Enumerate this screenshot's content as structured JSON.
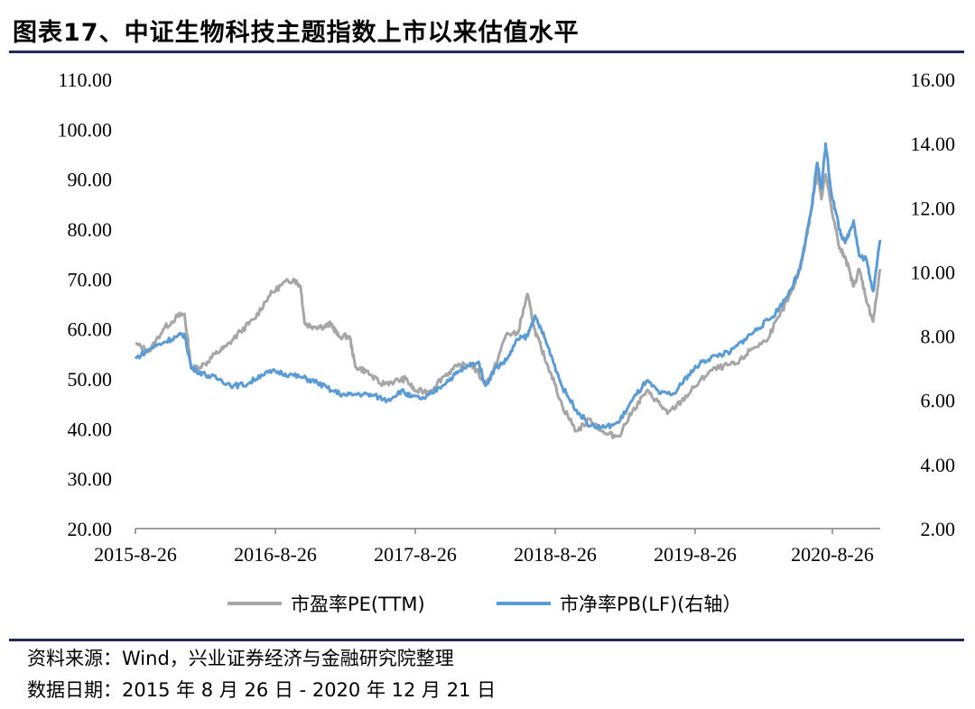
{
  "header": {
    "title": "图表17、中证生物科技主题指数上市以来估值水平"
  },
  "footer": {
    "source": "资料来源：Wind，兴业证券经济与金融研究院整理",
    "date_range": "数据日期：2015 年 8 月 26 日 - 2020 年 12 月 21 日"
  },
  "colors": {
    "pe": "#a6a6a6",
    "pb": "#5b9bd5",
    "rule": "#1f2a5a"
  },
  "chart_data": {
    "type": "line",
    "title": "图表17、中证生物科技主题指数上市以来估值水平",
    "x_tick_labels": [
      "2015-8-26",
      "2016-8-26",
      "2017-8-26",
      "2018-8-26",
      "2019-8-26",
      "2020-8-26"
    ],
    "x_range": [
      2015.65,
      2020.97
    ],
    "y_left_ticks": [
      "20.00",
      "30.00",
      "40.00",
      "50.00",
      "60.00",
      "70.00",
      "80.00",
      "90.00",
      "100.00",
      "110.00"
    ],
    "y_left_range": [
      20,
      110
    ],
    "y_right_ticks": [
      "2.00",
      "4.00",
      "6.00",
      "8.00",
      "10.00",
      "12.00",
      "14.00",
      "16.00"
    ],
    "y_right_range": [
      2,
      16
    ],
    "legend_position": "bottom",
    "series": [
      {
        "name": "市盈率PE(TTM)",
        "axis": "left",
        "points": [
          [
            2015.65,
            57.0
          ],
          [
            2015.75,
            55.5
          ],
          [
            2015.85,
            60.0
          ],
          [
            2015.95,
            62.5
          ],
          [
            2016.0,
            63.0
          ],
          [
            2016.05,
            52.0
          ],
          [
            2016.15,
            53.0
          ],
          [
            2016.22,
            55.0
          ],
          [
            2016.3,
            56.5
          ],
          [
            2016.4,
            59.5
          ],
          [
            2016.5,
            62.0
          ],
          [
            2016.6,
            66.5
          ],
          [
            2016.7,
            69.0
          ],
          [
            2016.78,
            70.0
          ],
          [
            2016.83,
            68.5
          ],
          [
            2016.86,
            61.0
          ],
          [
            2016.92,
            60.5
          ],
          [
            2017.0,
            60.5
          ],
          [
            2017.05,
            61.0
          ],
          [
            2017.1,
            58.5
          ],
          [
            2017.18,
            58.5
          ],
          [
            2017.22,
            52.5
          ],
          [
            2017.3,
            51.5
          ],
          [
            2017.4,
            49.0
          ],
          [
            2017.5,
            49.5
          ],
          [
            2017.58,
            50.0
          ],
          [
            2017.65,
            47.5
          ],
          [
            2017.75,
            47.5
          ],
          [
            2017.85,
            50.5
          ],
          [
            2017.95,
            52.5
          ],
          [
            2018.05,
            53.0
          ],
          [
            2018.15,
            49.0
          ],
          [
            2018.2,
            51.0
          ],
          [
            2018.3,
            59.0
          ],
          [
            2018.38,
            59.0
          ],
          [
            2018.45,
            67.0
          ],
          [
            2018.5,
            60.0
          ],
          [
            2018.55,
            56.0
          ],
          [
            2018.62,
            51.0
          ],
          [
            2018.7,
            44.5
          ],
          [
            2018.8,
            39.5
          ],
          [
            2018.9,
            42.0
          ],
          [
            2019.0,
            39.0
          ],
          [
            2019.1,
            38.5
          ],
          [
            2019.2,
            43.5
          ],
          [
            2019.3,
            47.5
          ],
          [
            2019.38,
            45.5
          ],
          [
            2019.45,
            43.0
          ],
          [
            2019.55,
            45.5
          ],
          [
            2019.65,
            48.5
          ],
          [
            2019.75,
            51.5
          ],
          [
            2019.85,
            52.5
          ],
          [
            2019.95,
            53.0
          ],
          [
            2020.05,
            56.0
          ],
          [
            2020.15,
            57.5
          ],
          [
            2020.25,
            62.5
          ],
          [
            2020.35,
            68.0
          ],
          [
            2020.42,
            75.0
          ],
          [
            2020.48,
            84.0
          ],
          [
            2020.52,
            92.0
          ],
          [
            2020.55,
            86.0
          ],
          [
            2020.58,
            91.0
          ],
          [
            2020.62,
            84.5
          ],
          [
            2020.68,
            76.0
          ],
          [
            2020.72,
            74.5
          ],
          [
            2020.78,
            68.5
          ],
          [
            2020.82,
            72.0
          ],
          [
            2020.88,
            65.0
          ],
          [
            2020.92,
            61.5
          ],
          [
            2020.97,
            72.0
          ]
        ]
      },
      {
        "name": "市净率PB(LF)(右轴）",
        "axis": "right",
        "points": [
          [
            2015.65,
            7.3
          ],
          [
            2015.75,
            7.6
          ],
          [
            2015.85,
            7.8
          ],
          [
            2015.95,
            8.0
          ],
          [
            2016.0,
            8.05
          ],
          [
            2016.05,
            7.0
          ],
          [
            2016.15,
            6.8
          ],
          [
            2016.25,
            6.65
          ],
          [
            2016.35,
            6.45
          ],
          [
            2016.45,
            6.5
          ],
          [
            2016.55,
            6.8
          ],
          [
            2016.65,
            6.9
          ],
          [
            2016.75,
            6.8
          ],
          [
            2016.85,
            6.7
          ],
          [
            2016.95,
            6.55
          ],
          [
            2017.05,
            6.3
          ],
          [
            2017.15,
            6.15
          ],
          [
            2017.25,
            6.2
          ],
          [
            2017.35,
            6.15
          ],
          [
            2017.45,
            6.0
          ],
          [
            2017.55,
            6.3
          ],
          [
            2017.62,
            6.1
          ],
          [
            2017.72,
            6.05
          ],
          [
            2017.82,
            6.4
          ],
          [
            2017.92,
            6.75
          ],
          [
            2018.0,
            7.0
          ],
          [
            2018.1,
            7.2
          ],
          [
            2018.15,
            6.45
          ],
          [
            2018.22,
            7.0
          ],
          [
            2018.3,
            7.25
          ],
          [
            2018.38,
            7.9
          ],
          [
            2018.45,
            8.0
          ],
          [
            2018.5,
            8.6
          ],
          [
            2018.55,
            8.2
          ],
          [
            2018.62,
            7.4
          ],
          [
            2018.7,
            6.4
          ],
          [
            2018.8,
            5.7
          ],
          [
            2018.9,
            5.2
          ],
          [
            2019.0,
            5.15
          ],
          [
            2019.1,
            5.3
          ],
          [
            2019.2,
            6.0
          ],
          [
            2019.3,
            6.6
          ],
          [
            2019.4,
            6.2
          ],
          [
            2019.5,
            6.2
          ],
          [
            2019.6,
            6.8
          ],
          [
            2019.7,
            7.2
          ],
          [
            2019.8,
            7.4
          ],
          [
            2019.9,
            7.5
          ],
          [
            2020.0,
            7.9
          ],
          [
            2020.1,
            8.25
          ],
          [
            2020.2,
            8.6
          ],
          [
            2020.3,
            9.2
          ],
          [
            2020.4,
            10.1
          ],
          [
            2020.48,
            12.0
          ],
          [
            2020.52,
            13.4
          ],
          [
            2020.55,
            12.6
          ],
          [
            2020.58,
            14.0
          ],
          [
            2020.62,
            12.5
          ],
          [
            2020.68,
            11.3
          ],
          [
            2020.72,
            10.9
          ],
          [
            2020.78,
            11.6
          ],
          [
            2020.82,
            10.5
          ],
          [
            2020.87,
            10.4
          ],
          [
            2020.92,
            9.4
          ],
          [
            2020.97,
            11.0
          ]
        ]
      }
    ]
  }
}
